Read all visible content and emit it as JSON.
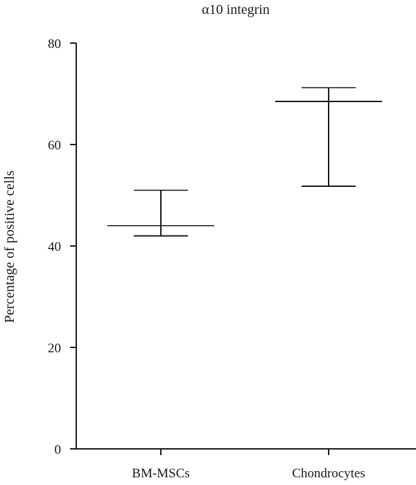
{
  "chart_data": {
    "type": "scatter",
    "title": "α10 integrin",
    "xlabel": "",
    "ylabel": "Percentage of positive cells",
    "ylim": [
      0,
      80
    ],
    "y_ticks": [
      0,
      20,
      40,
      60,
      80
    ],
    "categories": [
      "BM-MSCs",
      "Chondrocytes"
    ],
    "series": [
      {
        "values": [
          44,
          68.5
        ],
        "error_low": [
          42,
          51.8
        ],
        "error_high": [
          51,
          71.2
        ]
      }
    ],
    "grid": false,
    "legend": "none",
    "colors": {
      "ink": "#1a1a1a",
      "background": "#ffffff"
    }
  }
}
